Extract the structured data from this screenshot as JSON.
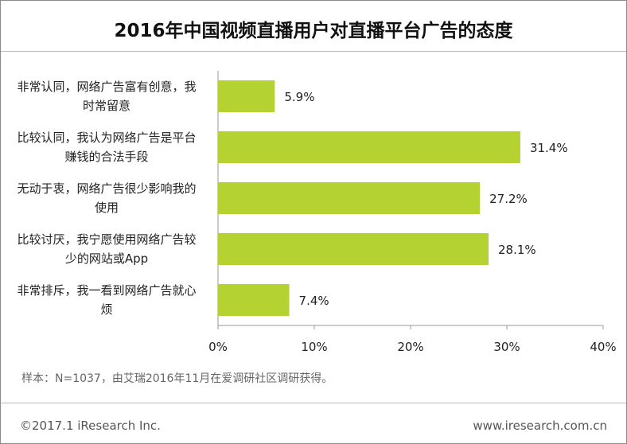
{
  "chart_data": {
    "type": "bar",
    "orientation": "horizontal",
    "title": "2016年中国视频直播用户对直播平台广告的态度",
    "categories": [
      [
        "非常认同，网络广告富有创意，我",
        "时常留意"
      ],
      [
        "比较认同，我认为网络广告是平台",
        "赚钱的合法手段"
      ],
      [
        "无动于衷，网络广告很少影响我的",
        "使用"
      ],
      [
        "比较讨厌，我宁愿使用网络广告较",
        "少的网站或App"
      ],
      [
        "非常排斥，我一看到网络广告就心",
        "烦"
      ]
    ],
    "values": [
      5.9,
      31.4,
      27.2,
      28.1,
      7.4
    ],
    "value_labels": [
      "5.9%",
      "31.4%",
      "27.2%",
      "28.1%",
      "7.4%"
    ],
    "xlim": [
      0,
      40
    ],
    "ticks": [
      0,
      10,
      20,
      30,
      40
    ],
    "tick_labels": [
      "0%",
      "10%",
      "20%",
      "30%",
      "40%"
    ],
    "bar_color": "#b5d233",
    "grid": false,
    "legend": "none"
  },
  "note": "样本：N=1037，由艾瑞2016年11月在爱调研社区调研获得。",
  "footer": {
    "copyright": "©2017.1 iResearch Inc.",
    "website": "www.iresearch.com.cn"
  }
}
